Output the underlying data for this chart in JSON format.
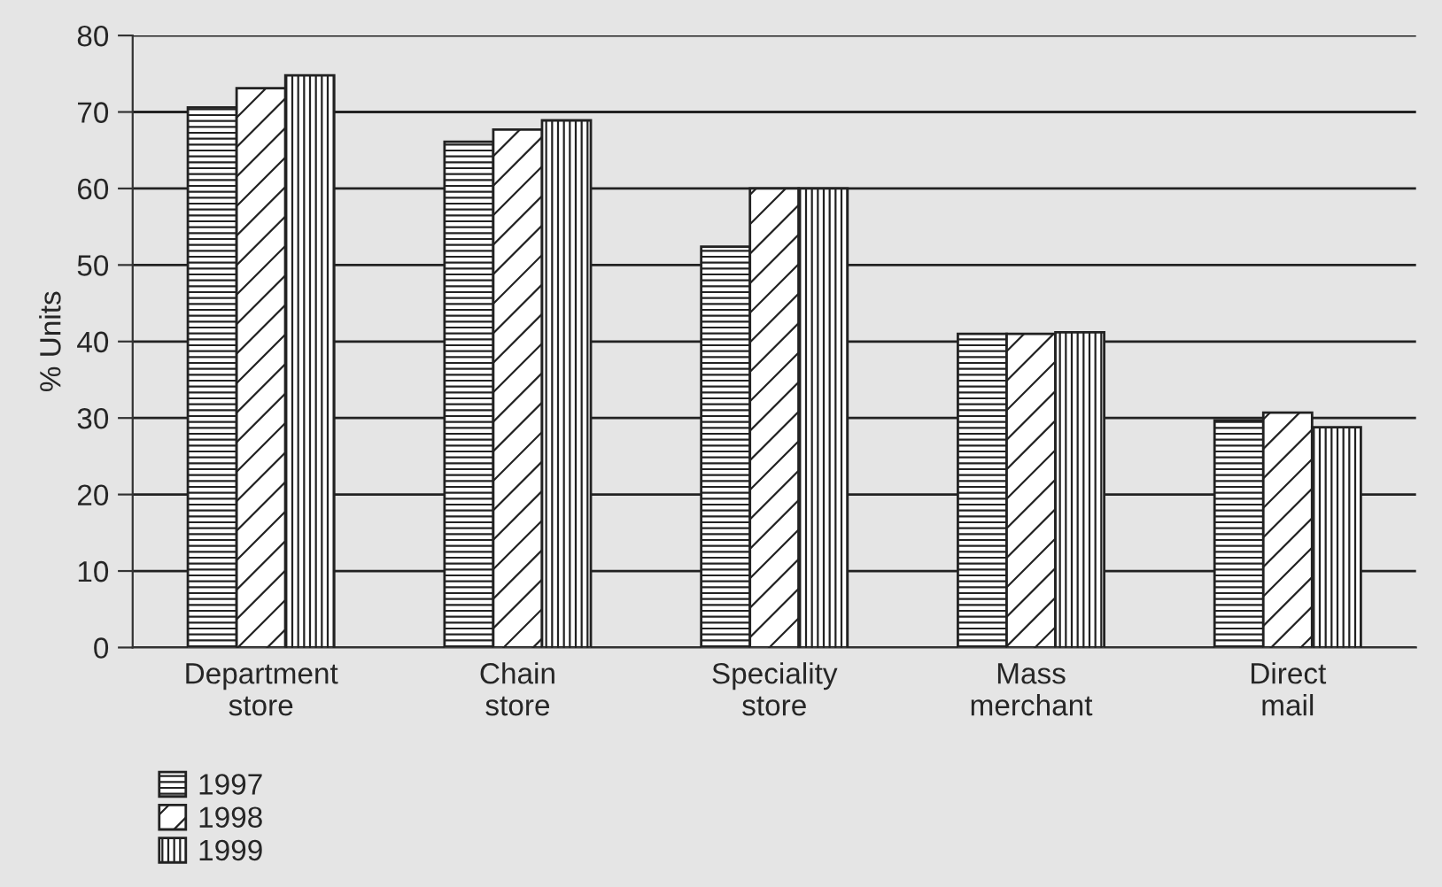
{
  "chart_data": {
    "type": "bar",
    "ylabel": "% Units",
    "categories": [
      "Department\nstore",
      "Chain\nstore",
      "Speciality\nstore",
      "Mass\nmerchant",
      "Direct\nmail"
    ],
    "series": [
      {
        "name": "1997",
        "color": "#222222",
        "values": [
          70.6,
          66.1,
          52.4,
          41,
          29.7
        ]
      },
      {
        "name": "1998",
        "color": "#222222",
        "values": [
          73.1,
          67.7,
          60,
          41,
          30.7
        ]
      },
      {
        "name": "1999",
        "color": "#222222",
        "values": [
          74.8,
          68.9,
          60,
          41.2,
          28.8
        ]
      }
    ],
    "ylim": [
      0,
      80
    ],
    "yticks": [
      0,
      10,
      20,
      30,
      40,
      50,
      60,
      70,
      80
    ],
    "grid": "y",
    "legend": "bottom left"
  }
}
